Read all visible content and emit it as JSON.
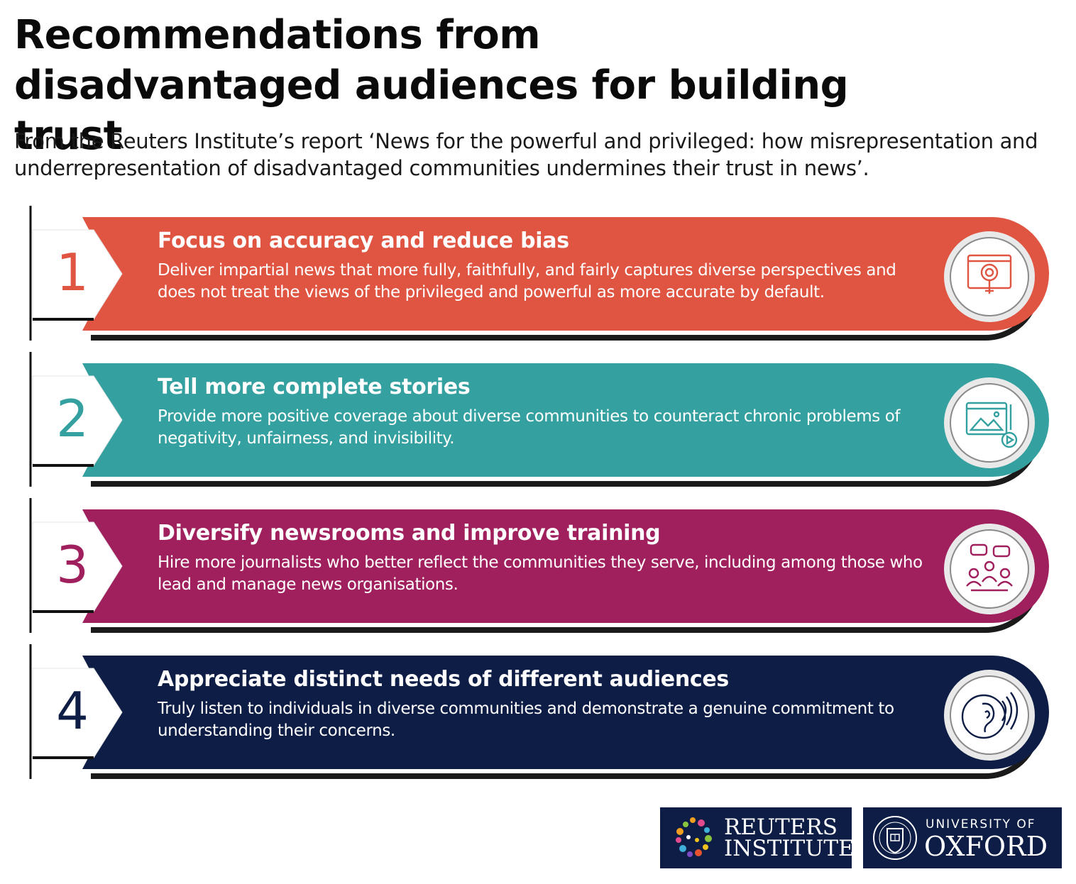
{
  "title": "Recommendations from disadvantaged audiences for building trust",
  "subtitle": "From the Reuters Institute’s report ‘News for the powerful and privileged: how misrepresentation and underrepresentation of disadvantaged communities undermines their trust in news’.",
  "recommendations": [
    {
      "number": "1",
      "heading": "Focus on accuracy and reduce bias",
      "text": "Deliver impartial news that more fully, faithfully, and fairly captures diverse perspectives and does not treat the views of the privileged and powerful as more accurate by default.",
      "color": "#df5541",
      "icon": "magnifier-screen-icon"
    },
    {
      "number": "2",
      "heading": "Tell more complete stories",
      "text": "Provide more positive coverage about diverse communities to counteract chronic problems of negativity, unfairness, and invisibility.",
      "color": "#35a0a0",
      "icon": "media-content-icon"
    },
    {
      "number": "3",
      "heading": "Diversify newsrooms and improve training",
      "text": "Hire more journalists who better reflect the communities they serve, including among those who lead and manage news organisations.",
      "color": "#a0205e",
      "icon": "team-meeting-icon"
    },
    {
      "number": "4",
      "heading": "Appreciate distinct needs of different audiences",
      "text": "Truly listen to individuals in diverse communities and demonstrate a genuine commitment to understanding their concerns.",
      "color": "#0e1d45",
      "icon": "listening-ear-icon"
    }
  ],
  "logos": {
    "reuters_line1": "REUTERS",
    "reuters_line2": "INSTITUTE",
    "oxford_line1": "UNIVERSITY OF",
    "oxford_line2": "OXFORD"
  }
}
